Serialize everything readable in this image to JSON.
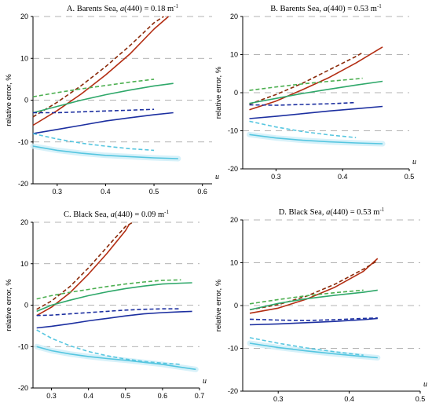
{
  "figure": {
    "y_axis_label": "relative error, %",
    "x_axis_label": "u"
  },
  "chart_data": [
    {
      "type": "line",
      "title": "A. Barents Sea, a(440) = 0.18 m",
      "title_superscript": "-1",
      "xlabel": "u",
      "ylabel": "relative error, %",
      "xlim": [
        0.25,
        0.62
      ],
      "ylim": [
        -20,
        20
      ],
      "xticks": [
        "0.3",
        "0.4",
        "0.5",
        "0.6"
      ],
      "yticks": [
        "-20",
        "-10",
        "0",
        "10",
        "20"
      ],
      "grid": "horizontal-dashed",
      "series": [
        {
          "color": "#b32d12",
          "style": "solid",
          "x": [
            0.25,
            0.3,
            0.35,
            0.4,
            0.45,
            0.5,
            0.53
          ],
          "y": [
            -6,
            -2.5,
            1.5,
            6,
            11,
            17,
            20
          ]
        },
        {
          "color": "#8a2a0a",
          "style": "dashed",
          "x": [
            0.25,
            0.3,
            0.35,
            0.4,
            0.45,
            0.5,
            0.52
          ],
          "y": [
            -4,
            -0.5,
            3.5,
            8,
            13,
            18.5,
            20
          ]
        },
        {
          "color": "#2fa86a",
          "style": "solid",
          "x": [
            0.25,
            0.3,
            0.35,
            0.4,
            0.45,
            0.5,
            0.54
          ],
          "y": [
            -3,
            -1.5,
            0,
            1.3,
            2.4,
            3.4,
            4
          ]
        },
        {
          "color": "#4caf50",
          "style": "dashed",
          "x": [
            0.25,
            0.3,
            0.35,
            0.4,
            0.45,
            0.5
          ],
          "y": [
            0.8,
            1.8,
            2.7,
            3.5,
            4.3,
            5
          ]
        },
        {
          "color": "#1c2fa0",
          "style": "solid",
          "x": [
            0.25,
            0.3,
            0.35,
            0.4,
            0.45,
            0.5,
            0.54
          ],
          "y": [
            -8,
            -7,
            -6,
            -5,
            -4.2,
            -3.5,
            -3
          ]
        },
        {
          "color": "#1c2fa0",
          "style": "dashed",
          "x": [
            0.25,
            0.3,
            0.35,
            0.4,
            0.45,
            0.5
          ],
          "y": [
            -3,
            -3,
            -2.8,
            -2.6,
            -2.4,
            -2.2
          ]
        },
        {
          "color": "#56c6e0",
          "style": "solid",
          "x": [
            0.25,
            0.3,
            0.35,
            0.4,
            0.45,
            0.5,
            0.55
          ],
          "y": [
            -11,
            -12,
            -12.7,
            -13.2,
            -13.5,
            -13.8,
            -14
          ]
        },
        {
          "color": "#56c6e0",
          "style": "dashed",
          "x": [
            0.25,
            0.3,
            0.35,
            0.4,
            0.45,
            0.5
          ],
          "y": [
            -8,
            -9.3,
            -10.3,
            -11,
            -11.6,
            -12
          ]
        }
      ]
    },
    {
      "type": "line",
      "title": "B. Barents Sea, a(440) = 0.53 m",
      "title_superscript": "-1",
      "xlabel": "u",
      "ylabel": "relative error, %",
      "xlim": [
        0.25,
        0.5
      ],
      "ylim": [
        -20,
        20
      ],
      "xticks": [
        "0.3",
        "0.4",
        "0.5"
      ],
      "yticks": [
        "-20",
        "-10",
        "0",
        "10",
        "20"
      ],
      "grid": "horizontal-dashed",
      "series": [
        {
          "color": "#b32d12",
          "style": "solid",
          "x": [
            0.26,
            0.3,
            0.34,
            0.38,
            0.42,
            0.46
          ],
          "y": [
            -4.5,
            -2.2,
            0.8,
            4,
            7.8,
            12
          ]
        },
        {
          "color": "#8a2a0a",
          "style": "dashed",
          "x": [
            0.26,
            0.3,
            0.34,
            0.38,
            0.42,
            0.43
          ],
          "y": [
            -3,
            -0.5,
            2.5,
            6,
            9.5,
            10.5
          ]
        },
        {
          "color": "#2fa86a",
          "style": "solid",
          "x": [
            0.26,
            0.3,
            0.34,
            0.38,
            0.42,
            0.46
          ],
          "y": [
            -2.8,
            -1.5,
            -0.2,
            0.9,
            2,
            3
          ]
        },
        {
          "color": "#4caf50",
          "style": "dashed",
          "x": [
            0.26,
            0.3,
            0.34,
            0.38,
            0.42,
            0.43
          ],
          "y": [
            0.6,
            1.5,
            2.3,
            3,
            3.6,
            3.8
          ]
        },
        {
          "color": "#1c2fa0",
          "style": "solid",
          "x": [
            0.26,
            0.3,
            0.34,
            0.38,
            0.42,
            0.46
          ],
          "y": [
            -6.8,
            -6.2,
            -5.5,
            -4.8,
            -4.2,
            -3.6
          ]
        },
        {
          "color": "#1c2fa0",
          "style": "dashed",
          "x": [
            0.26,
            0.3,
            0.34,
            0.38,
            0.42
          ],
          "y": [
            -3.2,
            -3.3,
            -3.1,
            -2.9,
            -2.6
          ]
        },
        {
          "color": "#56c6e0",
          "style": "solid",
          "x": [
            0.26,
            0.3,
            0.34,
            0.38,
            0.42,
            0.46
          ],
          "y": [
            -11,
            -11.9,
            -12.5,
            -12.9,
            -13.2,
            -13.4
          ]
        },
        {
          "color": "#56c6e0",
          "style": "dashed",
          "x": [
            0.26,
            0.3,
            0.34,
            0.38,
            0.42
          ],
          "y": [
            -7.5,
            -9,
            -10.2,
            -11.1,
            -11.8
          ]
        }
      ]
    },
    {
      "type": "line",
      "title": "C. Black Sea, a(440) = 0.09 m",
      "title_superscript": "-1",
      "xlabel": "u",
      "ylabel": "relative error, %",
      "xlim": [
        0.25,
        0.7
      ],
      "ylim": [
        -20,
        20
      ],
      "xticks": [
        "0.3",
        "0.4",
        "0.5",
        "0.6",
        "0.7"
      ],
      "yticks": [
        "-20",
        "-10",
        "0",
        "10",
        "20"
      ],
      "grid": "horizontal-dashed",
      "series": [
        {
          "color": "#b32d12",
          "style": "solid",
          "x": [
            0.26,
            0.3,
            0.35,
            0.4,
            0.45,
            0.5,
            0.51
          ],
          "y": [
            -2.5,
            -0.5,
            3,
            7.5,
            12.5,
            18,
            19.5
          ]
        },
        {
          "color": "#8a2a0a",
          "style": "dashed",
          "x": [
            0.26,
            0.3,
            0.35,
            0.4,
            0.45,
            0.5,
            0.52
          ],
          "y": [
            -1,
            1,
            4.5,
            9,
            14,
            19,
            20
          ]
        },
        {
          "color": "#2fa86a",
          "style": "solid",
          "x": [
            0.26,
            0.3,
            0.35,
            0.4,
            0.45,
            0.5,
            0.55,
            0.6,
            0.65,
            0.68
          ],
          "y": [
            -1.5,
            0,
            1.2,
            2.3,
            3.2,
            4,
            4.6,
            5.1,
            5.3,
            5.4
          ]
        },
        {
          "color": "#4caf50",
          "style": "dashed",
          "x": [
            0.26,
            0.3,
            0.35,
            0.4,
            0.45,
            0.5,
            0.55,
            0.6,
            0.65
          ],
          "y": [
            1.5,
            2.3,
            3.1,
            3.8,
            4.5,
            5.1,
            5.6,
            6,
            6.1
          ]
        },
        {
          "color": "#1c2fa0",
          "style": "solid",
          "x": [
            0.26,
            0.3,
            0.35,
            0.4,
            0.45,
            0.5,
            0.55,
            0.6,
            0.65,
            0.68
          ],
          "y": [
            -5.5,
            -5.1,
            -4.5,
            -3.8,
            -3.2,
            -2.6,
            -2.1,
            -1.8,
            -1.6,
            -1.5
          ]
        },
        {
          "color": "#1c2fa0",
          "style": "dashed",
          "x": [
            0.26,
            0.3,
            0.35,
            0.4,
            0.45,
            0.5,
            0.55,
            0.6,
            0.65
          ],
          "y": [
            -2.5,
            -2.4,
            -2.1,
            -1.8,
            -1.5,
            -1.2,
            -1,
            -0.9,
            -0.9
          ]
        },
        {
          "color": "#56c6e0",
          "style": "solid",
          "x": [
            0.26,
            0.3,
            0.35,
            0.4,
            0.45,
            0.5,
            0.55,
            0.6,
            0.65,
            0.69
          ],
          "y": [
            -10,
            -11,
            -11.8,
            -12.4,
            -12.9,
            -13.3,
            -13.8,
            -14.3,
            -15,
            -15.5
          ]
        },
        {
          "color": "#56c6e0",
          "style": "dashed",
          "x": [
            0.26,
            0.3,
            0.35,
            0.4,
            0.45,
            0.5,
            0.55,
            0.6,
            0.65
          ],
          "y": [
            -6,
            -8,
            -9.8,
            -11.2,
            -12.2,
            -13,
            -13.6,
            -14,
            -14.3
          ]
        }
      ]
    },
    {
      "type": "line",
      "title": "D. Black Sea, a(440) = 0.53 m",
      "title_superscript": "-1",
      "xlabel": "u",
      "ylabel": "relative error, %",
      "xlim": [
        0.25,
        0.5
      ],
      "ylim": [
        -20,
        20
      ],
      "xticks": [
        "0.3",
        "0.4",
        "0.5"
      ],
      "yticks": [
        "-20",
        "-10",
        "0",
        "10",
        "20"
      ],
      "grid": "horizontal-dashed",
      "series": [
        {
          "color": "#b32d12",
          "style": "solid",
          "x": [
            0.26,
            0.3,
            0.34,
            0.38,
            0.42,
            0.44
          ],
          "y": [
            -1.8,
            -0.6,
            1.5,
            4.3,
            8,
            11
          ]
        },
        {
          "color": "#8a2a0a",
          "style": "dashed",
          "x": [
            0.26,
            0.3,
            0.34,
            0.38,
            0.42,
            0.44
          ],
          "y": [
            -1,
            0.2,
            2.2,
            5,
            8.5,
            10.5
          ]
        },
        {
          "color": "#2fa86a",
          "style": "solid",
          "x": [
            0.26,
            0.3,
            0.34,
            0.38,
            0.42,
            0.44
          ],
          "y": [
            -1,
            0.5,
            1.6,
            2.4,
            3.1,
            3.6
          ]
        },
        {
          "color": "#4caf50",
          "style": "dashed",
          "x": [
            0.26,
            0.3,
            0.34,
            0.38,
            0.42
          ],
          "y": [
            0.4,
            1.4,
            2.3,
            3,
            3.6
          ]
        },
        {
          "color": "#1c2fa0",
          "style": "solid",
          "x": [
            0.26,
            0.3,
            0.34,
            0.38,
            0.42,
            0.44
          ],
          "y": [
            -4.5,
            -4.3,
            -4,
            -3.7,
            -3.3,
            -3
          ]
        },
        {
          "color": "#1c2fa0",
          "style": "dashed",
          "x": [
            0.26,
            0.3,
            0.34,
            0.38,
            0.42,
            0.44
          ],
          "y": [
            -3.2,
            -3.4,
            -3.5,
            -3.3,
            -3,
            -2.9
          ]
        },
        {
          "color": "#56c6e0",
          "style": "solid",
          "x": [
            0.26,
            0.3,
            0.34,
            0.38,
            0.42,
            0.44
          ],
          "y": [
            -8.8,
            -9.8,
            -10.6,
            -11.3,
            -11.9,
            -12.2
          ]
        },
        {
          "color": "#56c6e0",
          "style": "dashed",
          "x": [
            0.26,
            0.3,
            0.34,
            0.38,
            0.42
          ],
          "y": [
            -7.5,
            -8.8,
            -9.9,
            -10.8,
            -11.6
          ]
        }
      ]
    }
  ]
}
